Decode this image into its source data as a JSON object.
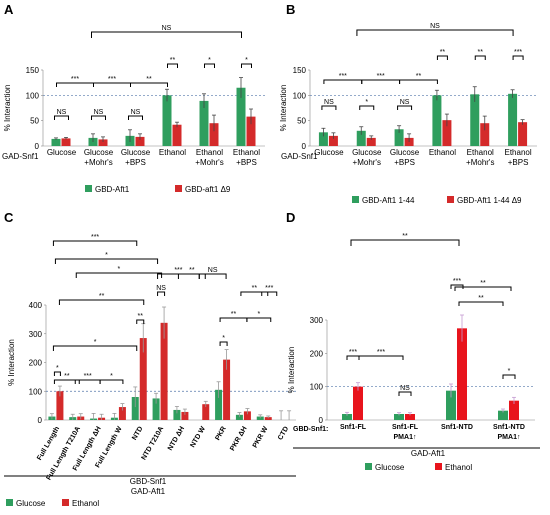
{
  "chart_data": [
    {
      "panel": "A",
      "type": "bar",
      "ylabel": "% Interaction",
      "ylim": [
        0,
        150
      ],
      "yticks": [
        0,
        50,
        100,
        150
      ],
      "reference_line": 100,
      "row_label": "GAD-Snf1",
      "categories": [
        "Glucose",
        "Glucose +Mohr's",
        "Glucose +BPS",
        "Ethanol",
        "Ethanol +Mohr's",
        "Ethanol +BPS"
      ],
      "series": [
        {
          "name": "GBD-Aft1",
          "color": "#2f9e5e",
          "values": [
            14,
            16,
            20,
            100,
            89,
            115
          ],
          "errors": [
            2,
            8,
            12,
            12,
            14,
            20
          ]
        },
        {
          "name": "GBD-aft1 Δ9",
          "color": "#d42a2a",
          "values": [
            15,
            13,
            18,
            42,
            45,
            58
          ],
          "errors": [
            2,
            5,
            6,
            5,
            16,
            15
          ]
        }
      ],
      "significance": [
        {
          "label": "NS"
        },
        {
          "label": "NS"
        },
        {
          "label": "NS"
        },
        {
          "label": "***"
        },
        {
          "label": "***"
        },
        {
          "label": "**"
        },
        {
          "label": "**"
        },
        {
          "label": "*"
        },
        {
          "label": "*"
        },
        {
          "label": "NS"
        }
      ]
    },
    {
      "panel": "B",
      "type": "bar",
      "ylabel": "% Interaction",
      "ylim": [
        0,
        150
      ],
      "yticks": [
        0,
        50,
        100,
        150
      ],
      "reference_line": 100,
      "row_label": "GAD-Snf1",
      "categories": [
        "Glucose",
        "Glucose +Mohr's",
        "Glucose +BPS",
        "Ethanol",
        "Ethanol +Mohr's",
        "Ethanol +BPS"
      ],
      "series": [
        {
          "name": "GBD-Aft1 1-44",
          "color": "#2f9e5e",
          "values": [
            27,
            30,
            33,
            100,
            102,
            103
          ],
          "errors": [
            8,
            8,
            7,
            10,
            15,
            8
          ]
        },
        {
          "name": "GBD-Aft1 1-44 Δ9",
          "color": "#d42a2a",
          "values": [
            20,
            16,
            16,
            51,
            45,
            47
          ],
          "errors": [
            6,
            4,
            8,
            12,
            14,
            5
          ]
        }
      ],
      "significance": [
        {
          "label": "NS"
        },
        {
          "label": "*"
        },
        {
          "label": "NS"
        },
        {
          "label": "***"
        },
        {
          "label": "***"
        },
        {
          "label": "**"
        },
        {
          "label": "**"
        },
        {
          "label": "**"
        },
        {
          "label": "***"
        },
        {
          "label": "NS"
        }
      ]
    },
    {
      "panel": "C",
      "type": "bar",
      "ylabel": "% Interaction",
      "ylim": [
        0,
        400
      ],
      "yticks": [
        0,
        100,
        200,
        300,
        400
      ],
      "reference_line": 100,
      "categories": [
        "Full Length",
        "Full Length T210A",
        "Full Length ΔH",
        "Full Length W",
        "NTD",
        "NTD T210A",
        "NTD ΔH",
        "NTD W",
        "PKR",
        "PKR ΔH",
        "PKR W",
        "CTD"
      ],
      "group_label": "GBD-Snf1",
      "group_label2": "GAD-Aft1",
      "series": [
        {
          "name": "Glucose",
          "color": "#2f9e5e",
          "values": [
            12,
            10,
            5,
            8,
            80,
            75,
            35,
            0,
            105,
            18,
            12,
            0
          ],
          "errors": [
            10,
            10,
            18,
            15,
            35,
            18,
            12,
            0,
            28,
            8,
            6,
            32
          ]
        },
        {
          "name": "Ethanol",
          "color": "#d42a2a",
          "values": [
            100,
            12,
            8,
            45,
            285,
            338,
            28,
            55,
            210,
            30,
            10,
            0
          ],
          "errors": [
            18,
            10,
            12,
            12,
            50,
            55,
            10,
            10,
            35,
            10,
            4,
            32
          ]
        }
      ],
      "significance": [
        {
          "label": "***"
        },
        {
          "label": "*"
        },
        {
          "label": "*"
        },
        {
          "label": "**"
        },
        {
          "label": "***"
        },
        {
          "label": "**"
        },
        {
          "label": "NS"
        },
        {
          "label": "**"
        },
        {
          "label": "*"
        },
        {
          "label": "**"
        },
        {
          "label": "***"
        },
        {
          "label": "*"
        },
        {
          "label": "*"
        },
        {
          "label": "**"
        },
        {
          "label": "***"
        },
        {
          "label": "*"
        },
        {
          "label": "NS"
        },
        {
          "label": "**"
        },
        {
          "label": "*"
        },
        {
          "label": "**"
        },
        {
          "label": "***"
        }
      ]
    },
    {
      "panel": "D",
      "type": "bar",
      "ylabel": "% Interaction",
      "ylim": [
        0,
        300
      ],
      "yticks": [
        0,
        100,
        200,
        300
      ],
      "reference_line": 100,
      "row_label": "GBD-Snf1:",
      "categories": [
        "Snf1-FL",
        "Snf1-FL PMA1↑",
        "Snf1-NTD",
        "Snf1-NTD PMA1↑"
      ],
      "group_label": "GAD-Aft1",
      "series": [
        {
          "name": "Glucose",
          "color": "#2f9e5e",
          "values": [
            18,
            18,
            88,
            28
          ],
          "errors": [
            5,
            4,
            20,
            5
          ]
        },
        {
          "name": "Ethanol",
          "color": "#e8141c",
          "values": [
            100,
            18,
            275,
            58
          ],
          "errors": [
            12,
            4,
            40,
            10
          ]
        }
      ],
      "significance": [
        {
          "label": "***"
        },
        {
          "label": "***"
        },
        {
          "label": "NS"
        },
        {
          "label": "***"
        },
        {
          "label": "*"
        },
        {
          "label": "**"
        },
        {
          "label": "**"
        },
        {
          "label": "**"
        }
      ]
    }
  ]
}
